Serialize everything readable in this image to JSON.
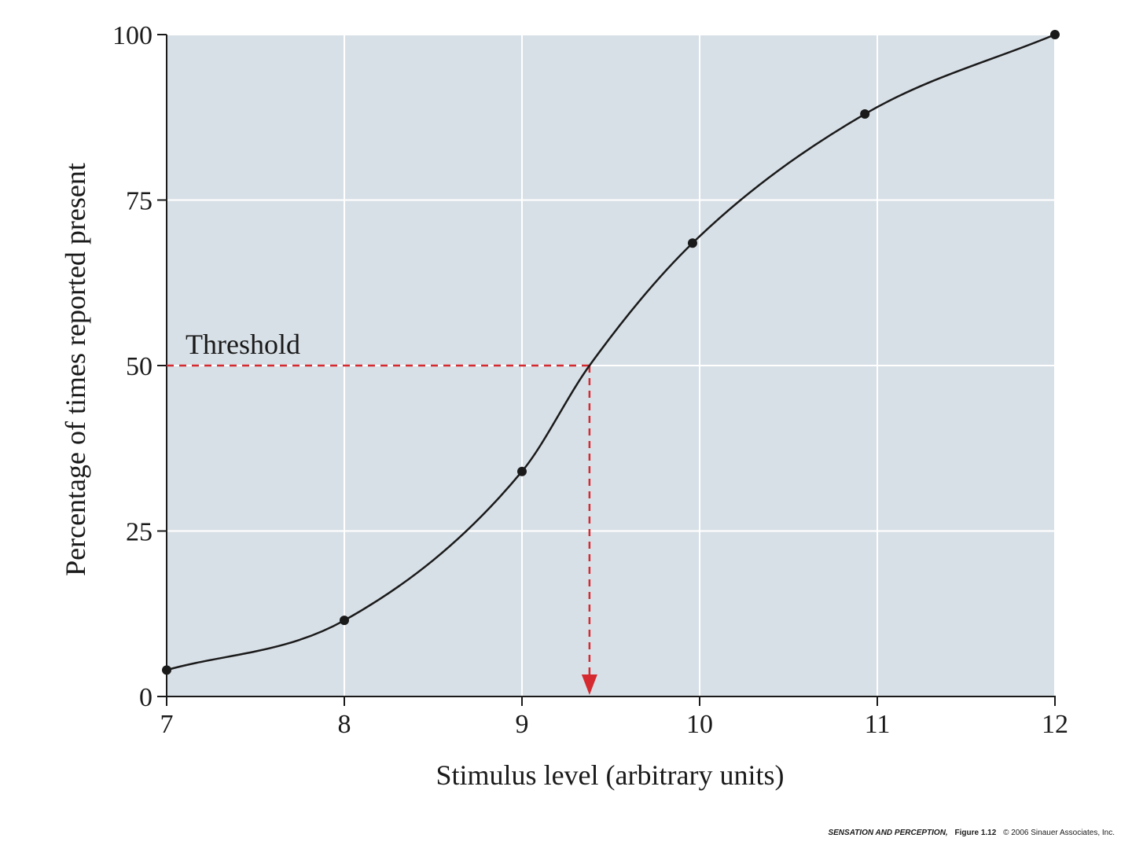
{
  "chart_data": {
    "type": "line",
    "xlabel": "Stimulus level (arbitrary units)",
    "ylabel": "Percentage of times reported present",
    "xlim": [
      7,
      12
    ],
    "ylim": [
      0,
      100
    ],
    "x_ticks": [
      7,
      8,
      9,
      10,
      11,
      12
    ],
    "y_ticks": [
      0,
      25,
      50,
      75,
      100
    ],
    "grid": true,
    "plot_background": "#d8e0e7",
    "gridline_color": "#ffffff",
    "curve_color": "#1a1a1a",
    "threshold_color": "#d42a30",
    "series": [
      {
        "x": [
          7,
          8,
          9,
          9.96,
          10.93,
          12
        ],
        "y": [
          4,
          11.5,
          34,
          68.5,
          88,
          100
        ]
      }
    ],
    "threshold": {
      "label": "Threshold",
      "x": 9.38,
      "y": 50
    }
  },
  "credit": {
    "book": "SENSATION AND PERCEPTION,",
    "figure": "Figure 1.12",
    "copyright": "© 2006 Sinauer Associates, Inc."
  }
}
